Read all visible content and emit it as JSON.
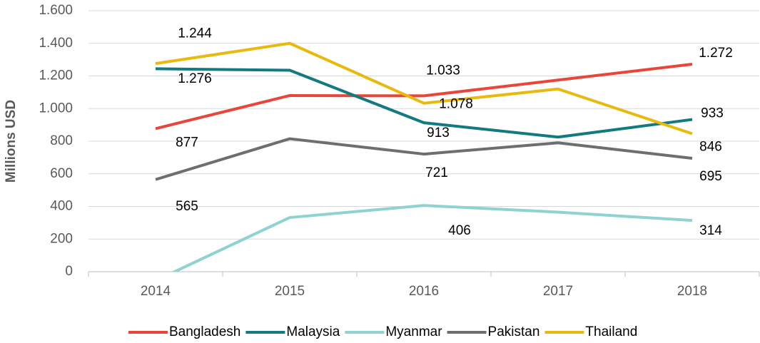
{
  "chart_data": {
    "type": "line",
    "y_label": "Millions USD",
    "categories": [
      "2014",
      "2015",
      "2016",
      "2017",
      "2018"
    ],
    "ylim": [
      0,
      1600
    ],
    "yticks": [
      0,
      200,
      400,
      600,
      800,
      {
        "value": 1000,
        "label": "1.000"
      },
      {
        "value": 1200,
        "label": "1.200"
      },
      {
        "value": 1400,
        "label": "1.400"
      },
      {
        "value": 1600,
        "label": "1.600"
      }
    ],
    "grid": true,
    "legend": "bottom",
    "series": [
      {
        "name": "Bangladesh",
        "color": "#e8463a",
        "values": [
          877,
          1080,
          1078,
          1175,
          1272
        ],
        "value_labels": [
          "877",
          null,
          "1.078",
          null,
          "1.272"
        ]
      },
      {
        "name": "Malaysia",
        "color": "#127a80",
        "values": [
          1244,
          1235,
          913,
          825,
          933
        ],
        "value_labels": [
          "1.244",
          null,
          "913",
          null,
          "933"
        ]
      },
      {
        "name": "Myanmar",
        "color": "#8fd3d0",
        "values": [
          -55,
          332,
          406,
          365,
          314
        ],
        "value_labels": [
          null,
          null,
          "406",
          null,
          "314"
        ]
      },
      {
        "name": "Pakistan",
        "color": "#6d6e71",
        "values": [
          565,
          815,
          721,
          790,
          695
        ],
        "value_labels": [
          "565",
          null,
          "721",
          null,
          "695"
        ]
      },
      {
        "name": "Thailand",
        "color": "#e8b90f",
        "values": [
          1276,
          1400,
          1033,
          1120,
          846
        ],
        "value_labels": [
          "1.276",
          null,
          "1.033",
          null,
          "846"
        ]
      }
    ]
  }
}
